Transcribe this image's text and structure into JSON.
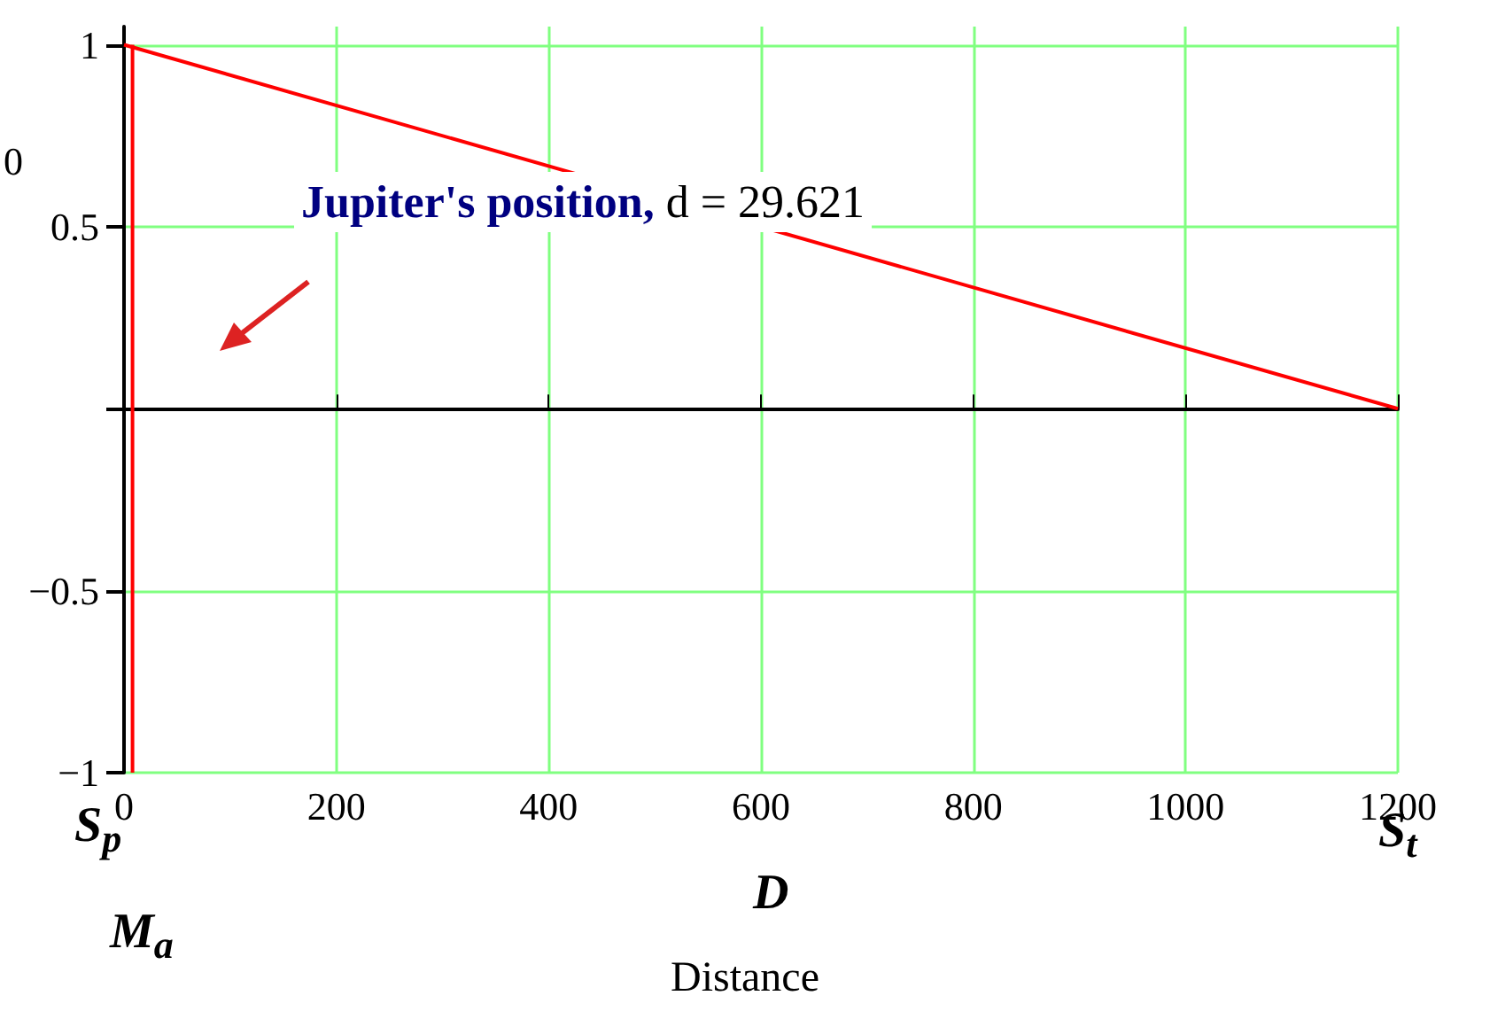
{
  "chart_data": {
    "type": "line",
    "xlabel": "Distance",
    "ylabel": "0",
    "xlim": [
      0,
      1200
    ],
    "xticks": [
      0,
      200,
      400,
      600,
      800,
      1000,
      1200
    ],
    "ylim": [
      -1,
      1.05
    ],
    "yticks": [
      {
        "value": -1,
        "label": "−1"
      },
      {
        "value": -0.5,
        "label": "−0.5"
      },
      {
        "value": 0,
        "label": null
      },
      0.5,
      1
    ],
    "series": [
      {
        "color": "#ff0000",
        "x": [
          0,
          1200
        ],
        "values": [
          1,
          0
        ]
      },
      {
        "color": "#ff0000",
        "x": [
          8,
          8
        ],
        "values": [
          -1,
          1
        ]
      }
    ],
    "annotations": [
      "Jupiter's position, d = 29.621",
      "S$_{p}$",
      "D",
      "S$_{t}$",
      "M$_{a}$"
    ],
    "grid": true,
    "marker": "none",
    "line_style": "solid"
  }
}
